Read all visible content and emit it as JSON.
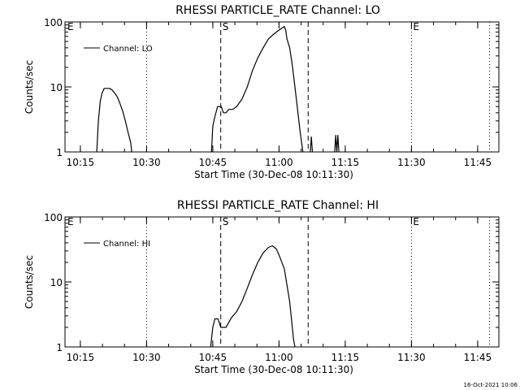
{
  "footer_timestamp": "16-Oct-2021 10:06",
  "chart_data": [
    {
      "id": "lo",
      "type": "line",
      "title": "RHESSI PARTICLE_RATE Channel: LO",
      "ylabel": "Counts/sec",
      "xlabel": "Start Time (30-Dec-08 10:11:30)",
      "xlim": [
        10.192,
        11.83
      ],
      "ylim": [
        1,
        100
      ],
      "yscale": "log",
      "x_tick_labels": [
        {
          "label": "10:15",
          "x": 10.25
        },
        {
          "label": "10:30",
          "x": 10.5
        },
        {
          "label": "10:45",
          "x": 10.75
        },
        {
          "label": "11:00",
          "x": 11.0
        },
        {
          "label": "11:15",
          "x": 11.25
        },
        {
          "label": "11:30",
          "x": 11.5
        },
        {
          "label": "11:45",
          "x": 11.75
        }
      ],
      "y_tick_labels": [
        {
          "label": "1",
          "y": 1
        },
        {
          "label": "10",
          "y": 10
        },
        {
          "label": "100",
          "y": 100
        }
      ],
      "legend": {
        "label": "Channel: LO",
        "placement": "top-left"
      },
      "markers": [
        {
          "type": "dotted",
          "x": 10.5
        },
        {
          "type": "dotted",
          "x": 11.5
        },
        {
          "type": "dotted",
          "x": 11.795
        },
        {
          "type": "dashed",
          "x": 10.78,
          "label": "S"
        },
        {
          "type": "dashed",
          "x": 11.11
        }
      ],
      "corner_labels": [
        {
          "label": "E",
          "x": 10.195
        },
        {
          "label": "E",
          "x": 11.5
        }
      ],
      "series": [
        {
          "name": "Channel: LO",
          "points": [
            [
              10.312,
              1
            ],
            [
              10.318,
              3
            ],
            [
              10.325,
              6
            ],
            [
              10.332,
              8
            ],
            [
              10.34,
              9.5
            ],
            [
              10.36,
              9.5
            ],
            [
              10.37,
              9
            ],
            [
              10.38,
              8
            ],
            [
              10.39,
              7
            ],
            [
              10.4,
              5.5
            ],
            [
              10.41,
              4.2
            ],
            [
              10.42,
              3
            ],
            [
              10.43,
              2
            ],
            [
              10.44,
              1.4
            ],
            [
              10.444,
              1
            ]
          ]
        },
        {
          "name": "Channel: LO",
          "points": [
            [
              10.745,
              1
            ],
            [
              10.75,
              2.5
            ],
            [
              10.758,
              3.5
            ],
            [
              10.768,
              5
            ],
            [
              10.782,
              5
            ],
            [
              10.79,
              4
            ],
            [
              10.8,
              4
            ],
            [
              10.81,
              4.5
            ],
            [
              10.825,
              4.5
            ],
            [
              10.84,
              5
            ],
            [
              10.86,
              6.5
            ],
            [
              10.88,
              10
            ],
            [
              10.9,
              18
            ],
            [
              10.92,
              28
            ],
            [
              10.94,
              40
            ],
            [
              10.96,
              55
            ],
            [
              10.98,
              65
            ],
            [
              11.0,
              75
            ],
            [
              11.02,
              85
            ],
            [
              11.025,
              75
            ],
            [
              11.03,
              55
            ],
            [
              11.04,
              40
            ],
            [
              11.05,
              22
            ],
            [
              11.06,
              10
            ],
            [
              11.07,
              4.5
            ],
            [
              11.08,
              2
            ],
            [
              11.09,
              1
            ]
          ]
        },
        {
          "name": "Channel: LO",
          "points": [
            [
              11.118,
              1
            ],
            [
              11.122,
              1.7
            ],
            [
              11.126,
              1
            ]
          ]
        },
        {
          "name": "Channel: LO",
          "points": [
            [
              11.21,
              1
            ],
            [
              11.214,
              1.8
            ],
            [
              11.218,
              1
            ],
            [
              11.222,
              1.8
            ],
            [
              11.226,
              1
            ]
          ]
        }
      ]
    },
    {
      "id": "hi",
      "type": "line",
      "title": "RHESSI PARTICLE_RATE Channel: HI",
      "ylabel": "Counts/sec",
      "xlabel": "Start Time (30-Dec-08 10:11:30)",
      "xlim": [
        10.192,
        11.83
      ],
      "ylim": [
        1,
        100
      ],
      "yscale": "log",
      "x_tick_labels": [
        {
          "label": "10:15",
          "x": 10.25
        },
        {
          "label": "10:30",
          "x": 10.5
        },
        {
          "label": "10:45",
          "x": 10.75
        },
        {
          "label": "11:00",
          "x": 11.0
        },
        {
          "label": "11:15",
          "x": 11.25
        },
        {
          "label": "11:30",
          "x": 11.5
        },
        {
          "label": "11:45",
          "x": 11.75
        }
      ],
      "y_tick_labels": [
        {
          "label": "1",
          "y": 1
        },
        {
          "label": "10",
          "y": 10
        },
        {
          "label": "100",
          "y": 100
        }
      ],
      "legend": {
        "label": "Channel: HI",
        "placement": "top-left"
      },
      "markers": [
        {
          "type": "dotted",
          "x": 10.5
        },
        {
          "type": "dotted",
          "x": 11.5
        },
        {
          "type": "dotted",
          "x": 11.795
        },
        {
          "type": "dashed",
          "x": 10.78,
          "label": "S"
        },
        {
          "type": "dashed",
          "x": 11.11
        }
      ],
      "corner_labels": [
        {
          "label": "E",
          "x": 10.195
        },
        {
          "label": "E",
          "x": 11.5
        }
      ],
      "series": [
        {
          "name": "Channel: HI",
          "points": [
            [
              10.742,
              1
            ],
            [
              10.75,
              2
            ],
            [
              10.758,
              2.7
            ],
            [
              10.77,
              2.7
            ],
            [
              10.78,
              2
            ],
            [
              10.8,
              2
            ],
            [
              10.82,
              2.8
            ],
            [
              10.84,
              3.5
            ],
            [
              10.86,
              5
            ],
            [
              10.88,
              8
            ],
            [
              10.9,
              13
            ],
            [
              10.92,
              20
            ],
            [
              10.94,
              28
            ],
            [
              10.96,
              34
            ],
            [
              10.975,
              36
            ],
            [
              10.99,
              32
            ],
            [
              11.0,
              26
            ],
            [
              11.02,
              16
            ],
            [
              11.04,
              5
            ],
            [
              11.055,
              1.3
            ],
            [
              11.06,
              1
            ]
          ]
        }
      ]
    }
  ]
}
